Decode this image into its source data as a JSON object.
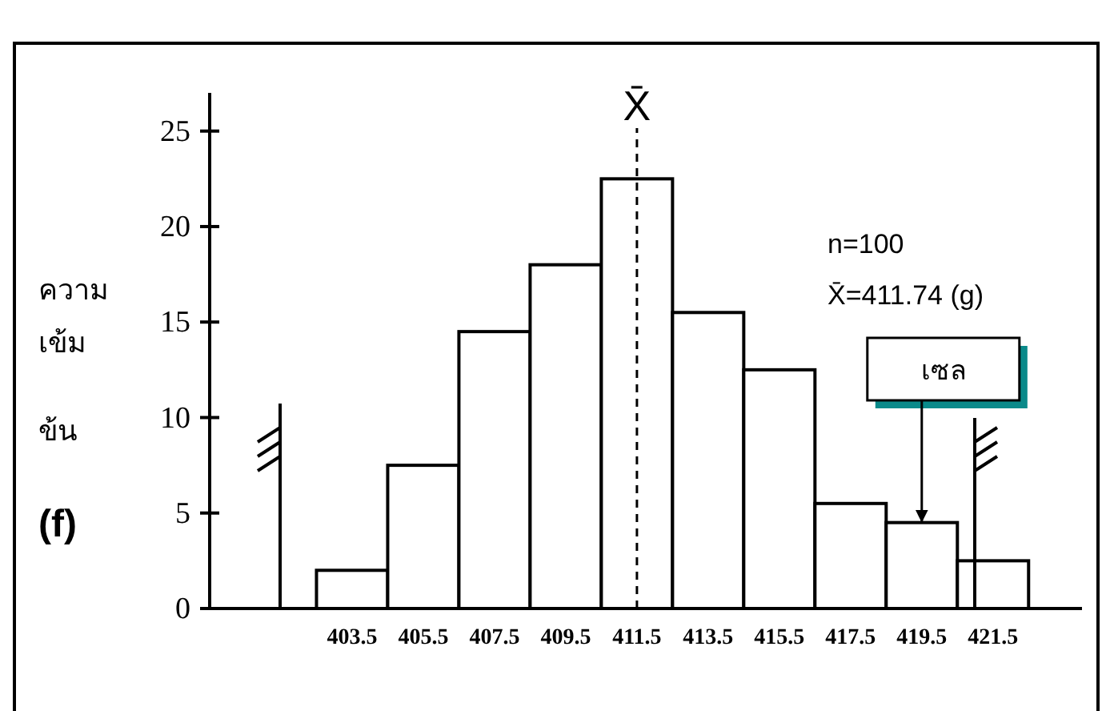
{
  "chart_data": {
    "type": "histogram",
    "ylabel": "ความ\nเข้ม\nข้น\n(f)",
    "bins": [
      402.5,
      404.5,
      406.5,
      408.5,
      410.5,
      412.5,
      414.5,
      416.5,
      418.5,
      420.5,
      422.5
    ],
    "values": [
      2,
      7.5,
      14.5,
      18,
      22.5,
      15.5,
      12.5,
      5.5,
      4.5,
      2.5
    ],
    "color": "#ffffff",
    "xlim": [
      399.5,
      424
    ],
    "xticks": [
      403.5,
      405.5,
      407.5,
      409.5,
      411.5,
      413.5,
      415.5,
      417.5,
      419.5,
      421.5
    ],
    "ylim": [
      0,
      27
    ],
    "yticks": [
      0,
      5,
      10,
      15,
      20,
      25
    ],
    "ref_lines": [
      {
        "axis": "x",
        "value": 411.5,
        "label": "X̄",
        "line_style": "dashed"
      }
    ],
    "annotations": [
      "n=100",
      "X̄=411.74 (g)",
      {
        "text": "เซล",
        "x": 419.5,
        "y": 4.5
      }
    ],
    "grid": false
  }
}
